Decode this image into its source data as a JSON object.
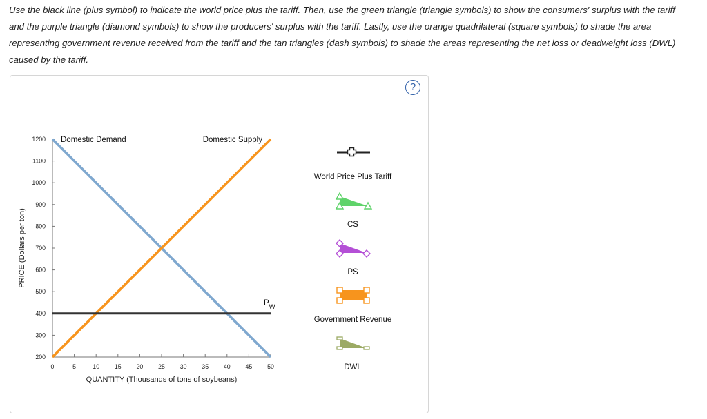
{
  "instructions": "Use the black line (plus symbol) to indicate the world price plus the tariff. Then, use the green triangle (triangle symbols) to show the consumers' surplus with the tariff and the purple triangle (diamond symbols) to show the producers' surplus with the tariff. Lastly, use the orange quadrilateral (square symbols) to shade the area representing government revenue received from the tariff and the tan triangles (dash symbols) to shade the areas representing the net loss or deadweight loss (DWL) caused by the tariff.",
  "help_label": "?",
  "chart_data": {
    "type": "line",
    "xlabel": "QUANTITY (Thousands of tons of soybeans)",
    "ylabel": "PRICE (Dollars per ton)",
    "xlim": [
      0,
      50
    ],
    "ylim": [
      200,
      1200
    ],
    "x_ticks": [
      0,
      5,
      10,
      15,
      20,
      25,
      30,
      35,
      40,
      45,
      50
    ],
    "y_ticks": [
      200,
      300,
      400,
      500,
      600,
      700,
      800,
      900,
      1000,
      1100,
      1200
    ],
    "grid": false,
    "series": [
      {
        "name": "Domestic Demand",
        "color": "#7fa8cf",
        "x": [
          0,
          50
        ],
        "y": [
          1200,
          200
        ]
      },
      {
        "name": "Domestic Supply",
        "color": "#f7941d",
        "x": [
          0,
          50
        ],
        "y": [
          200,
          1200
        ]
      },
      {
        "name": "PW",
        "color": "#333333",
        "x": [
          0,
          50
        ],
        "y": [
          400,
          400
        ]
      }
    ],
    "pw_label": {
      "main": "P",
      "sub": "W"
    }
  },
  "legend": [
    {
      "label": "World Price Plus Tariff",
      "symbol": "plus",
      "color": "#222222"
    },
    {
      "label": "CS",
      "symbol": "triangle",
      "color": "#5fd36a"
    },
    {
      "label": "PS",
      "symbol": "diamond",
      "color": "#b44fd6"
    },
    {
      "label": "Government Revenue",
      "symbol": "square",
      "color": "#f7941d"
    },
    {
      "label": "DWL",
      "symbol": "dash",
      "color": "#9caa64"
    }
  ]
}
